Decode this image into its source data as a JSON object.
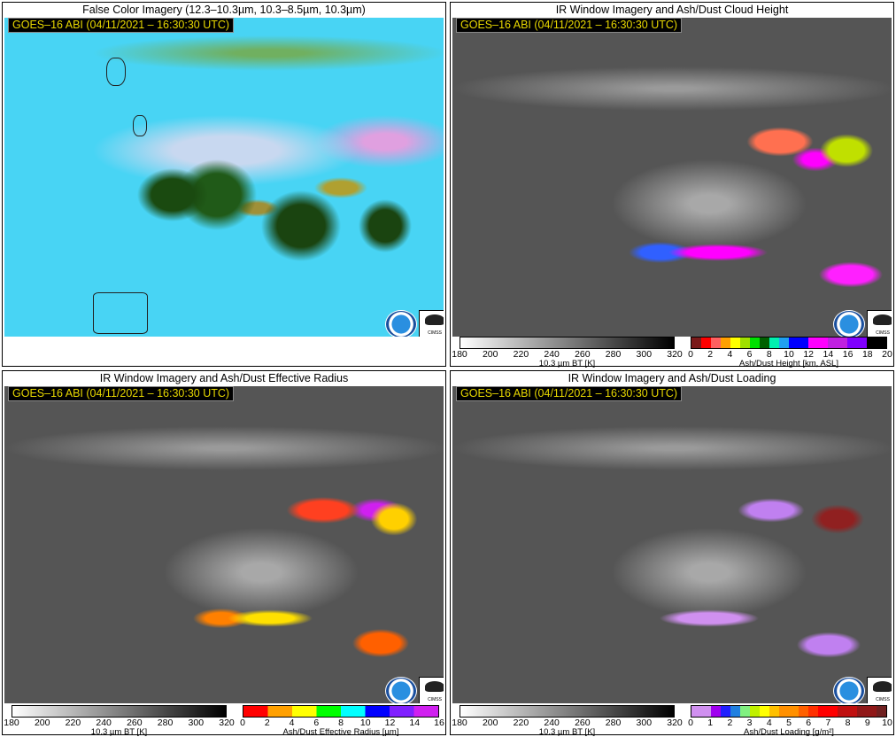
{
  "stamp": "GOES–16 ABI (04/11/2021 – 16:30:30 UTC)",
  "logos": {
    "noaa": "NOAA",
    "cimss": "CIMSS"
  },
  "panels": [
    {
      "title": "False Color Imagery (12.3–10.3µm, 10.3–8.5µm, 10.3µm)"
    },
    {
      "title": "IR Window Imagery and Ash/Dust Cloud Height"
    },
    {
      "title": "IR Window Imagery and Ash/Dust Effective Radius"
    },
    {
      "title": "IR Window Imagery and Ash/Dust Loading"
    }
  ],
  "bt_colorbar": {
    "label": "10.3 µm BT [K]",
    "ticks": [
      "180",
      "200",
      "220",
      "240",
      "260",
      "280",
      "300",
      "320"
    ],
    "range": [
      180,
      320
    ],
    "colors": [
      "#ffffff",
      "#000000"
    ]
  },
  "height_colorbar": {
    "label": "Ash/Dust Height [km, ASL]",
    "ticks": [
      "0",
      "2",
      "4",
      "6",
      "8",
      "10",
      "12",
      "14",
      "16",
      "18",
      "20"
    ],
    "range": [
      0,
      20
    ],
    "segments": [
      [
        0,
        1,
        "#7a1a1a"
      ],
      [
        1,
        2,
        "#ff0000"
      ],
      [
        2,
        3,
        "#ff6060"
      ],
      [
        3,
        4,
        "#ffa000"
      ],
      [
        4,
        5,
        "#ffff00"
      ],
      [
        5,
        6,
        "#a0e000"
      ],
      [
        6,
        7,
        "#00e000"
      ],
      [
        7,
        8,
        "#006000"
      ],
      [
        8,
        9,
        "#00f0b0"
      ],
      [
        9,
        10,
        "#20a0f0"
      ],
      [
        10,
        12,
        "#0000ff"
      ],
      [
        12,
        14,
        "#ff00ff"
      ],
      [
        14,
        16,
        "#c020e0"
      ],
      [
        16,
        18,
        "#8000ff"
      ],
      [
        18,
        20,
        "#000000"
      ]
    ]
  },
  "radius_colorbar": {
    "label": "Ash/Dust Effective Radius [µm]",
    "ticks": [
      "0",
      "2",
      "4",
      "6",
      "8",
      "10",
      "12",
      "14",
      "16"
    ],
    "range": [
      0,
      16
    ],
    "segments": [
      [
        0,
        2,
        "#ff0000"
      ],
      [
        2,
        4,
        "#ffa000"
      ],
      [
        4,
        6,
        "#ffff00"
      ],
      [
        6,
        8,
        "#00ff00"
      ],
      [
        8,
        10,
        "#00ffff"
      ],
      [
        10,
        12,
        "#0000ff"
      ],
      [
        12,
        14,
        "#8020ff"
      ],
      [
        14,
        16,
        "#d020f0"
      ]
    ]
  },
  "loading_colorbar": {
    "label": "Ash/Dust Loading [g/m²]",
    "ticks": [
      "0",
      "1",
      "2",
      "3",
      "4",
      "5",
      "6",
      "7",
      "8",
      "9",
      "10"
    ],
    "range": [
      0,
      10
    ],
    "segments": [
      [
        0,
        1,
        "#d090f0"
      ],
      [
        1,
        1.5,
        "#a000f0"
      ],
      [
        1.5,
        2,
        "#2020ff"
      ],
      [
        2,
        2.5,
        "#2080e0"
      ],
      [
        2.5,
        3,
        "#80f080"
      ],
      [
        3,
        3.5,
        "#c0f000"
      ],
      [
        3.5,
        4,
        "#ffff00"
      ],
      [
        4,
        4.5,
        "#ffc000"
      ],
      [
        4.5,
        5.5,
        "#ff9000"
      ],
      [
        5.5,
        6,
        "#ff6000"
      ],
      [
        6,
        6.5,
        "#ff3000"
      ],
      [
        6.5,
        7.5,
        "#ff0000"
      ],
      [
        7.5,
        8.5,
        "#c01010"
      ],
      [
        8.5,
        9.5,
        "#901818"
      ],
      [
        9.5,
        10,
        "#702020"
      ]
    ]
  }
}
